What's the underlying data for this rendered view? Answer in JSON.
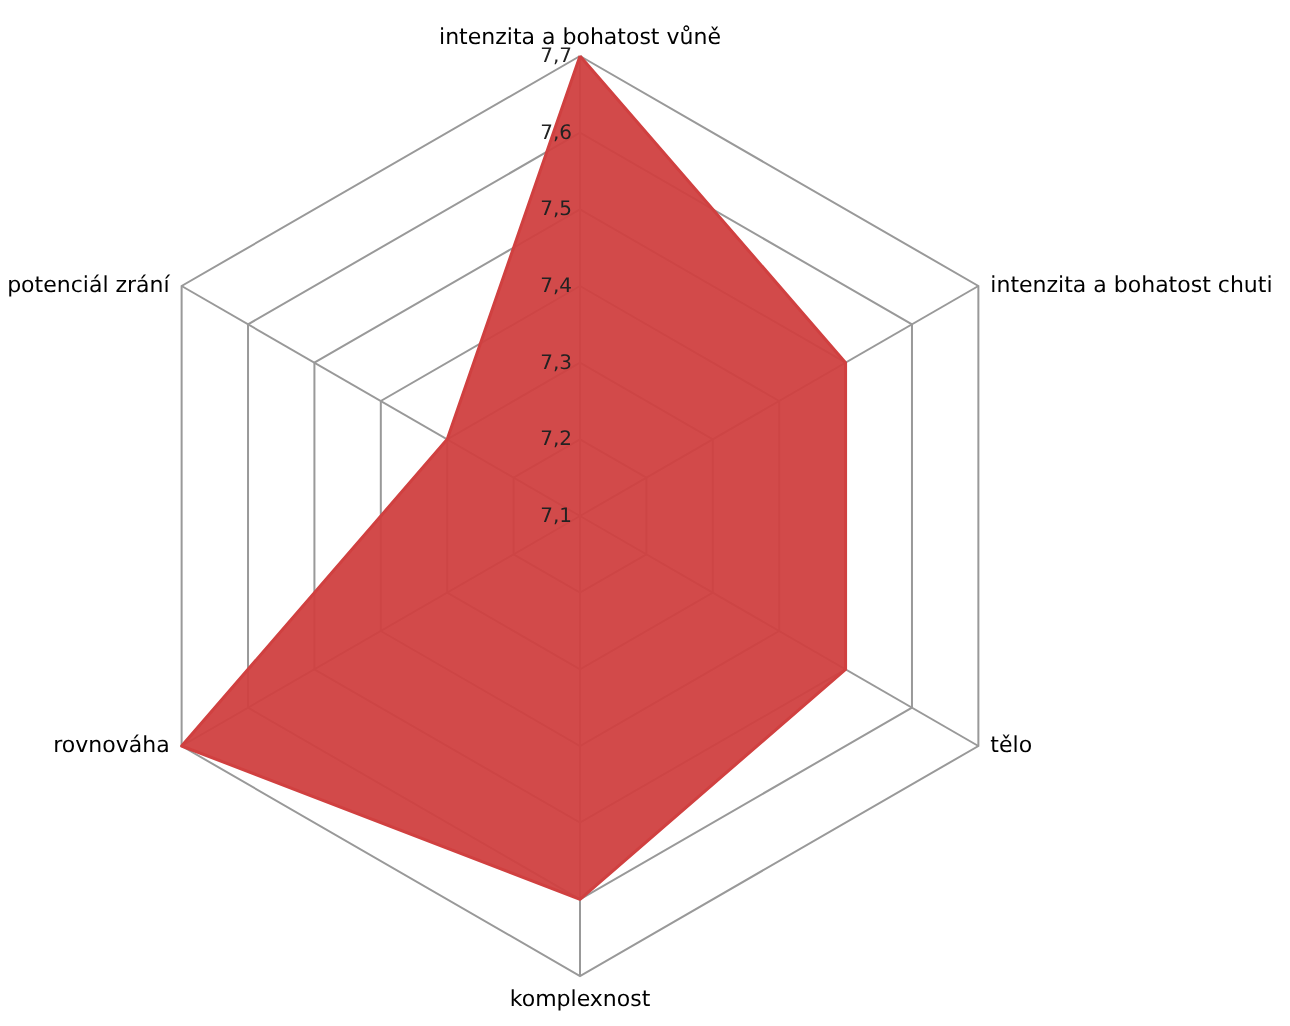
{
  "chart_data": {
    "type": "radar",
    "categories": [
      "intenzita a bohatost  vůně",
      "intenzita a bohatost  chuti",
      "tělo",
      "komplexnost",
      "rovnováha",
      "potenciál zrání"
    ],
    "series": [
      {
        "color": "#d04040",
        "values": [
          7.7,
          7.5,
          7.5,
          7.6,
          7.7,
          7.3
        ]
      }
    ],
    "ylim": [
      7.1,
      7.7
    ],
    "yticks": [
      {
        "value": 7.1,
        "label": "7,1"
      },
      {
        "value": 7.2,
        "label": "7,2"
      },
      {
        "value": 7.3,
        "label": "7,3"
      },
      {
        "value": 7.4,
        "label": "7,4"
      },
      {
        "value": 7.5,
        "label": "7,5"
      },
      {
        "value": 7.6,
        "label": "7,6"
      },
      {
        "value": 7.7,
        "label": "7,7"
      }
    ],
    "grid": true
  }
}
